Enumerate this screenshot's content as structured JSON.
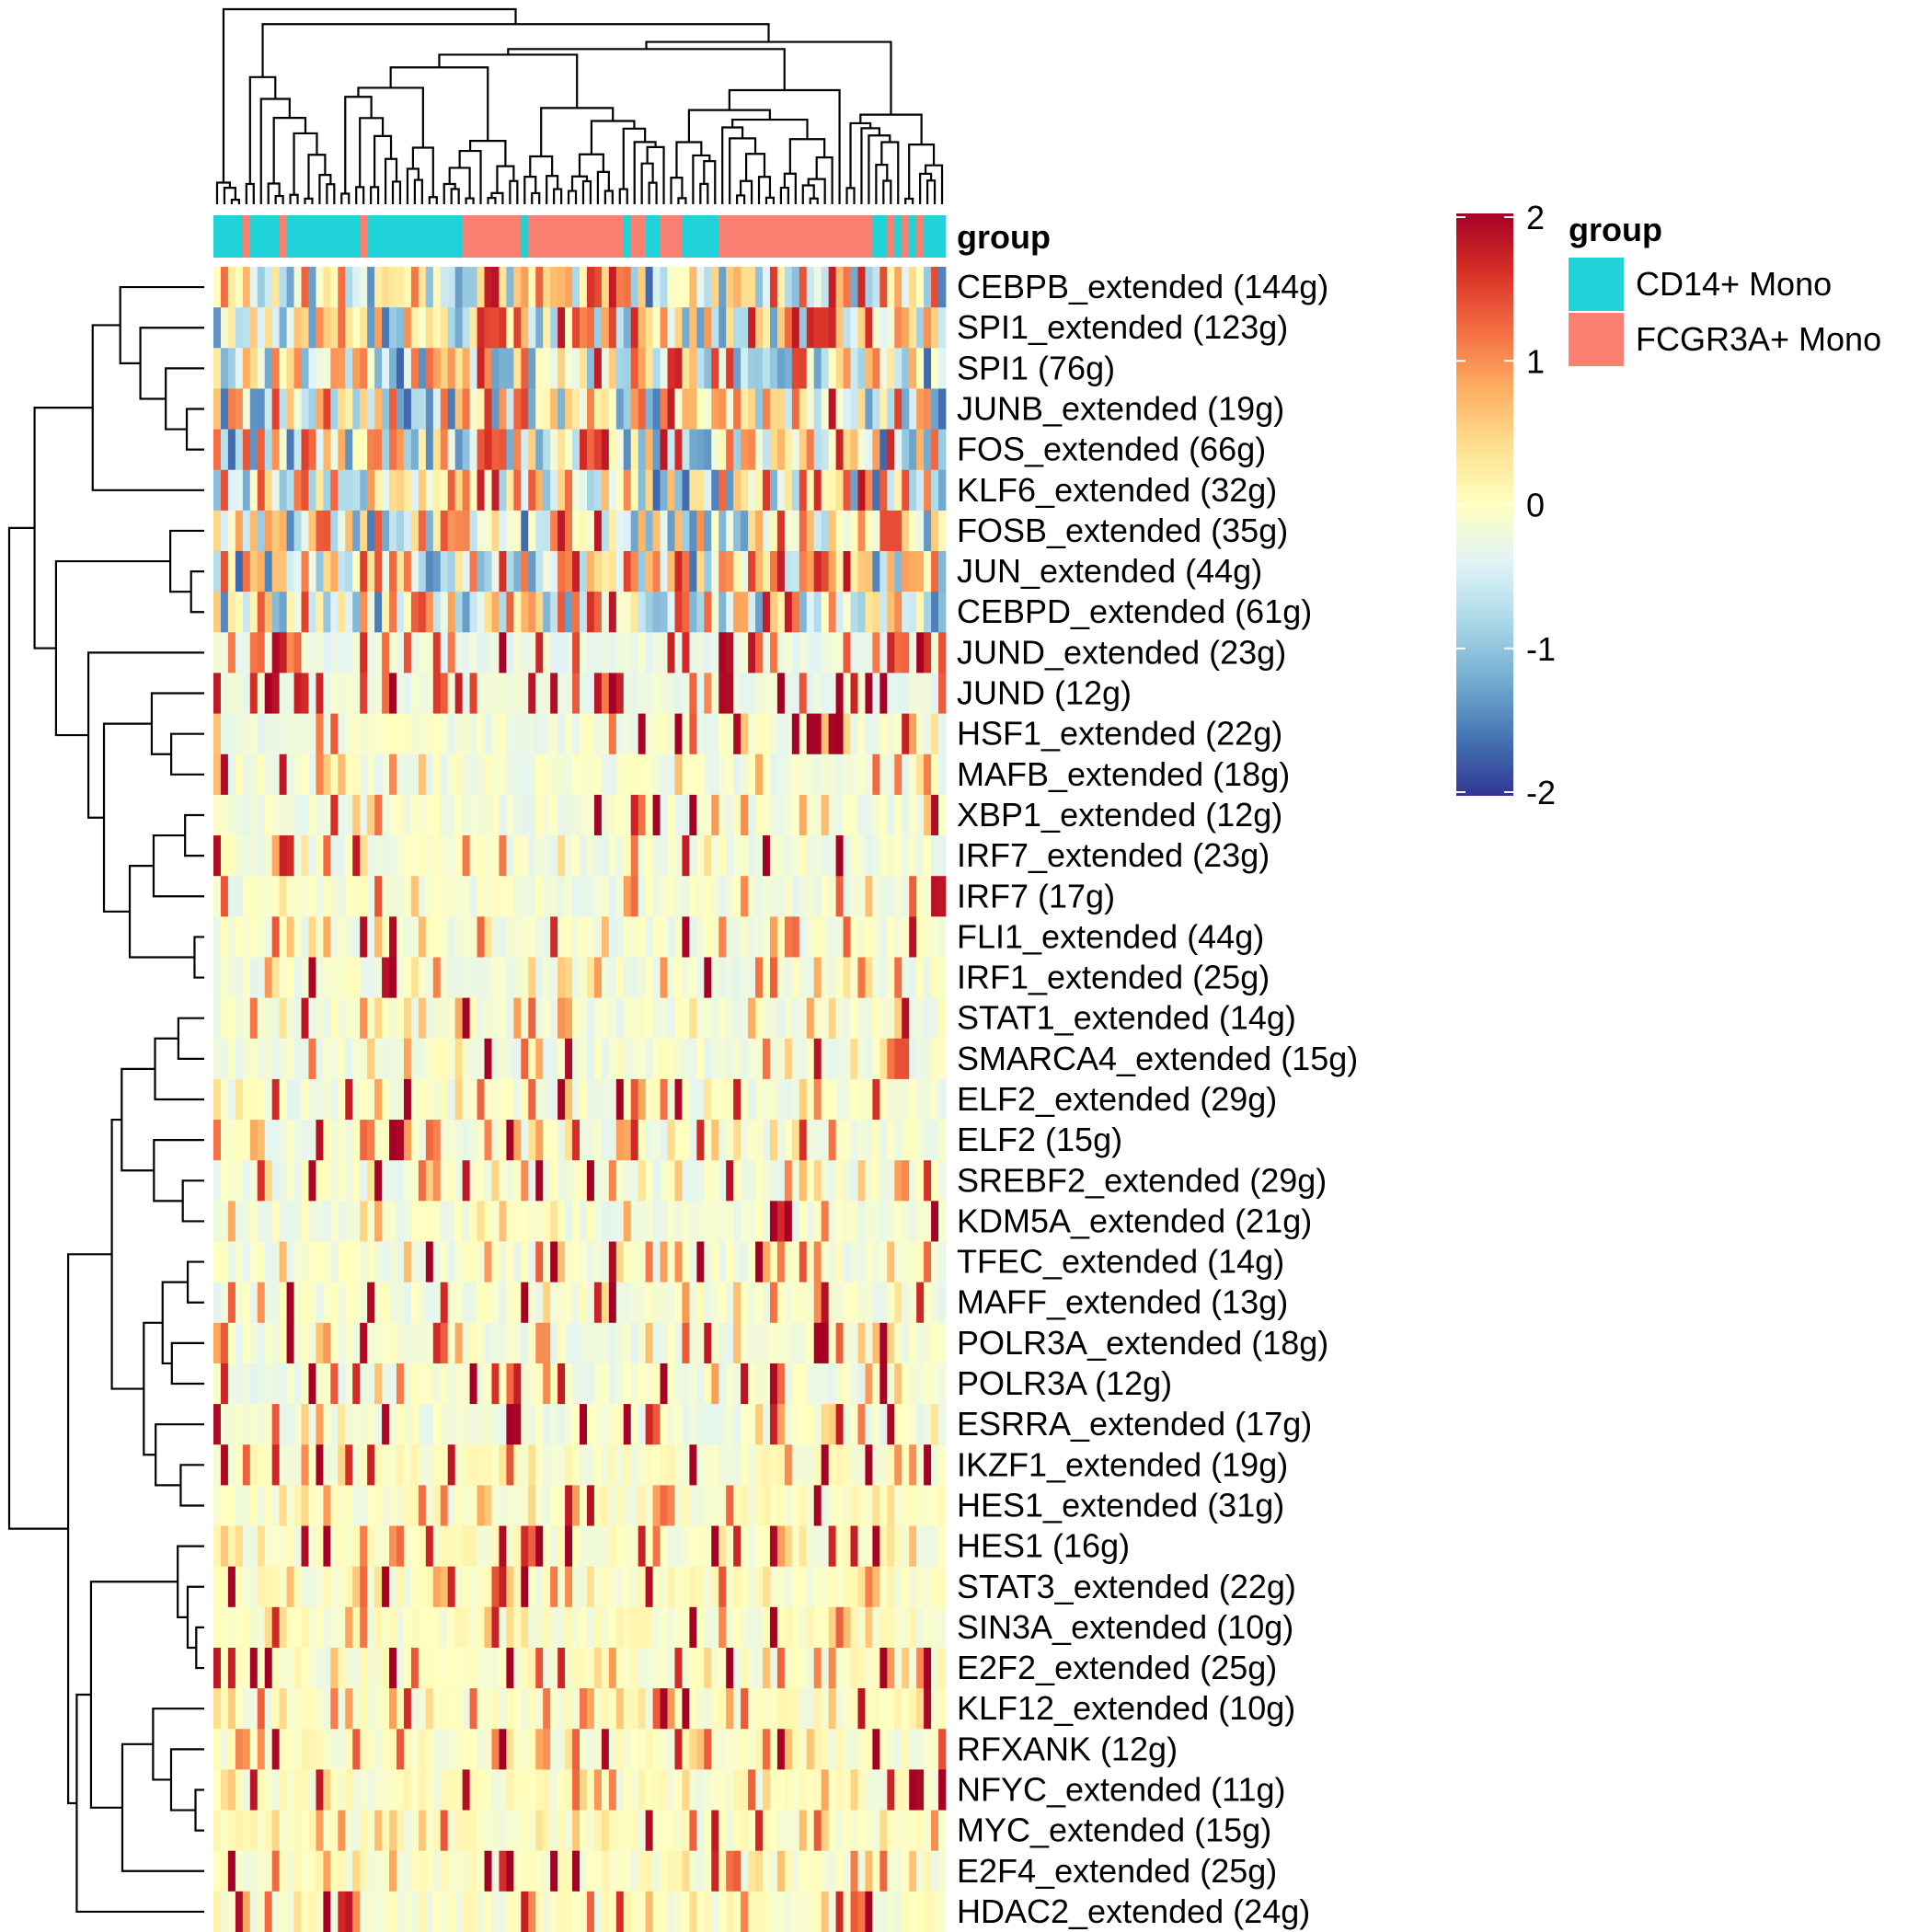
{
  "chart_data": {
    "type": "heatmap",
    "row_labels": [
      "CEBPB_extended (144g)",
      "SPI1_extended (123g)",
      "SPI1 (76g)",
      "JUNB_extended (19g)",
      "FOS_extended (66g)",
      "KLF6_extended (32g)",
      "FOSB_extended (35g)",
      "JUN_extended (44g)",
      "CEBPD_extended (61g)",
      "JUND_extended (23g)",
      "JUND (12g)",
      "HSF1_extended (22g)",
      "MAFB_extended (18g)",
      "XBP1_extended (12g)",
      "IRF7_extended (23g)",
      "IRF7 (17g)",
      "FLI1_extended (44g)",
      "IRF1_extended (25g)",
      "STAT1_extended (14g)",
      "SMARCA4_extended (15g)",
      "ELF2_extended (29g)",
      "ELF2 (15g)",
      "SREBF2_extended (29g)",
      "KDM5A_extended (21g)",
      "TFEC_extended (14g)",
      "MAFF_extended (13g)",
      "POLR3A_extended (18g)",
      "POLR3A (12g)",
      "ESRRA_extended (17g)",
      "IKZF1_extended (19g)",
      "HES1_extended (31g)",
      "HES1 (16g)",
      "STAT3_extended (22g)",
      "SIN3A_extended (10g)",
      "E2F2_extended (25g)",
      "KLF12_extended (10g)",
      "RFXANK (12g)",
      "NFYC_extended (11g)",
      "MYC_extended (15g)",
      "E2F4_extended (25g)",
      "HDAC2_extended (24g)"
    ],
    "column_groups": [
      "CD14+ Mono",
      "CD14+ Mono",
      "CD14+ Mono",
      "CD14+ Mono",
      "FCGR3A+ Mono",
      "CD14+ Mono",
      "CD14+ Mono",
      "CD14+ Mono",
      "CD14+ Mono",
      "FCGR3A+ Mono",
      "CD14+ Mono",
      "CD14+ Mono",
      "CD14+ Mono",
      "CD14+ Mono",
      "CD14+ Mono",
      "CD14+ Mono",
      "CD14+ Mono",
      "CD14+ Mono",
      "CD14+ Mono",
      "CD14+ Mono",
      "FCGR3A+ Mono",
      "CD14+ Mono",
      "CD14+ Mono",
      "CD14+ Mono",
      "CD14+ Mono",
      "CD14+ Mono",
      "CD14+ Mono",
      "CD14+ Mono",
      "CD14+ Mono",
      "CD14+ Mono",
      "CD14+ Mono",
      "CD14+ Mono",
      "CD14+ Mono",
      "CD14+ Mono",
      "FCGR3A+ Mono",
      "FCGR3A+ Mono",
      "FCGR3A+ Mono",
      "FCGR3A+ Mono",
      "FCGR3A+ Mono",
      "FCGR3A+ Mono",
      "FCGR3A+ Mono",
      "FCGR3A+ Mono",
      "CD14+ Mono",
      "FCGR3A+ Mono",
      "FCGR3A+ Mono",
      "FCGR3A+ Mono",
      "FCGR3A+ Mono",
      "FCGR3A+ Mono",
      "FCGR3A+ Mono",
      "FCGR3A+ Mono",
      "FCGR3A+ Mono",
      "FCGR3A+ Mono",
      "FCGR3A+ Mono",
      "FCGR3A+ Mono",
      "FCGR3A+ Mono",
      "FCGR3A+ Mono",
      "CD14+ Mono",
      "FCGR3A+ Mono",
      "FCGR3A+ Mono",
      "CD14+ Mono",
      "CD14+ Mono",
      "FCGR3A+ Mono",
      "FCGR3A+ Mono",
      "FCGR3A+ Mono",
      "CD14+ Mono",
      "CD14+ Mono",
      "CD14+ Mono",
      "CD14+ Mono",
      "CD14+ Mono",
      "FCGR3A+ Mono",
      "FCGR3A+ Mono",
      "FCGR3A+ Mono",
      "FCGR3A+ Mono",
      "FCGR3A+ Mono",
      "FCGR3A+ Mono",
      "FCGR3A+ Mono",
      "FCGR3A+ Mono",
      "FCGR3A+ Mono",
      "FCGR3A+ Mono",
      "FCGR3A+ Mono",
      "FCGR3A+ Mono",
      "FCGR3A+ Mono",
      "FCGR3A+ Mono",
      "FCGR3A+ Mono",
      "FCGR3A+ Mono",
      "FCGR3A+ Mono",
      "FCGR3A+ Mono",
      "FCGR3A+ Mono",
      "FCGR3A+ Mono",
      "FCGR3A+ Mono",
      "CD14+ Mono",
      "CD14+ Mono",
      "FCGR3A+ Mono",
      "CD14+ Mono",
      "FCGR3A+ Mono",
      "CD14+ Mono",
      "FCGR3A+ Mono",
      "CD14+ Mono",
      "CD14+ Mono",
      "CD14+ Mono"
    ],
    "value_range": [
      -2,
      2
    ],
    "color_scale": [
      "#313695",
      "#4575b4",
      "#74add1",
      "#abd9e9",
      "#e0f3f8",
      "#ffffbf",
      "#fee090",
      "#fdae61",
      "#f46d43",
      "#d73027",
      "#a50026"
    ],
    "colorbar_ticks": [
      "2",
      "1",
      "0",
      "-1",
      "-2"
    ],
    "annotation_legend": {
      "title": "group",
      "items": [
        {
          "label": "CD14+ Mono",
          "color": "#1fd3d8"
        },
        {
          "label": "FCGR3A+ Mono",
          "color": "#fa8072"
        }
      ]
    },
    "annotation_row_label": "group",
    "row_dendrogram": true,
    "column_dendrogram": true
  }
}
